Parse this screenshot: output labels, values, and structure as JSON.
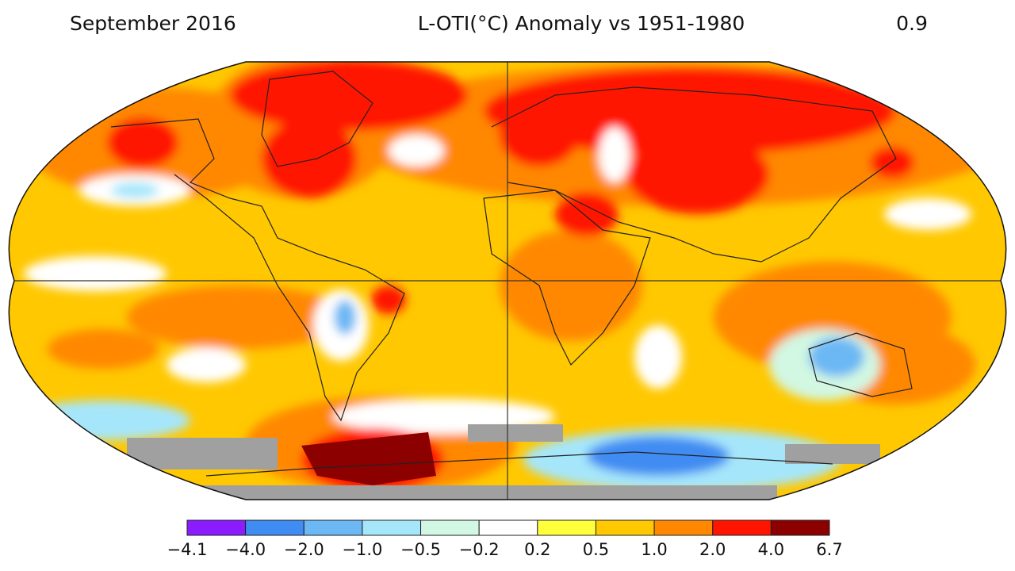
{
  "header": {
    "period": "September 2016",
    "title": "L-OTI(°C) Anomaly vs 1951-1980",
    "mean": "0.9"
  },
  "colorbar": {
    "labels": [
      "−4.1",
      "−4.0",
      "−2.0",
      "−1.0",
      "−0.5",
      "−0.2",
      "0.2",
      "0.5",
      "1.0",
      "2.0",
      "4.0",
      "6.7"
    ],
    "colors": [
      "#8a1cff",
      "#3f8cf2",
      "#6cb8f4",
      "#a6e6fb",
      "#d2f7e2",
      "#ffffff",
      "#ffff3c",
      "#ffc800",
      "#ff8800",
      "#ff1400",
      "#8c0000"
    ]
  }
}
